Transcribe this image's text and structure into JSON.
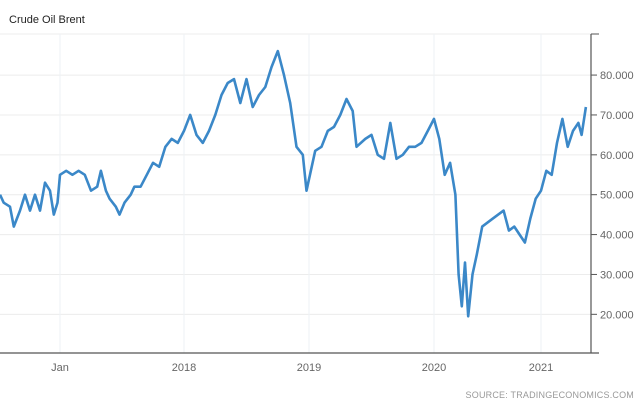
{
  "chart_data": {
    "type": "line",
    "title": "Crude Oil Brent",
    "source": "SOURCE: TRADINGECONOMICS.COM",
    "xlabel": "",
    "ylabel": "",
    "ylim": [
      10.3,
      90.3
    ],
    "xlim": [
      2016.52,
      2021.44
    ],
    "grid": true,
    "y_ticks": [
      20,
      30,
      40,
      50,
      60,
      70,
      80
    ],
    "y_tick_labels": [
      "20.000",
      "30.000",
      "40.000",
      "50.000",
      "60.000",
      "70.000",
      "80.000"
    ],
    "x_ticks": [
      2017,
      2018,
      2019,
      2020,
      2021
    ],
    "x_tick_labels": [
      "Jan",
      "2018",
      "2019",
      "2020",
      "2021"
    ],
    "line_color": "#3b88c8",
    "series": [
      {
        "name": "Crude Oil Brent",
        "x": [
          2016.52,
          2016.55,
          2016.6,
          2016.63,
          2016.68,
          2016.72,
          2016.76,
          2016.8,
          2016.84,
          2016.88,
          2016.92,
          2016.95,
          2016.98,
          2017.0,
          2017.05,
          2017.1,
          2017.15,
          2017.2,
          2017.25,
          2017.3,
          2017.33,
          2017.37,
          2017.4,
          2017.45,
          2017.48,
          2017.52,
          2017.57,
          2017.6,
          2017.65,
          2017.7,
          2017.75,
          2017.8,
          2017.85,
          2017.9,
          2017.95,
          2018.0,
          2018.05,
          2018.1,
          2018.15,
          2018.2,
          2018.25,
          2018.3,
          2018.35,
          2018.4,
          2018.45,
          2018.5,
          2018.55,
          2018.6,
          2018.65,
          2018.7,
          2018.75,
          2018.8,
          2018.85,
          2018.9,
          2018.95,
          2018.98,
          2019.05,
          2019.1,
          2019.15,
          2019.2,
          2019.25,
          2019.3,
          2019.35,
          2019.38,
          2019.45,
          2019.5,
          2019.55,
          2019.6,
          2019.65,
          2019.7,
          2019.75,
          2019.8,
          2019.85,
          2019.9,
          2019.95,
          2020.0,
          2020.05,
          2020.1,
          2020.15,
          2020.2,
          2020.23,
          2020.26,
          2020.29,
          2020.32,
          2020.36,
          2020.4,
          2020.45,
          2020.5,
          2020.55,
          2020.6,
          2020.65,
          2020.7,
          2020.75,
          2020.8,
          2020.85,
          2020.9,
          2020.95,
          2021.0,
          2021.05,
          2021.1,
          2021.15,
          2021.2,
          2021.25,
          2021.3,
          2021.35,
          2021.38,
          2021.42
        ],
        "values": [
          50,
          48,
          47,
          42,
          46,
          50,
          46,
          50,
          46,
          53,
          51,
          45,
          48,
          55,
          56,
          55,
          56,
          55,
          51,
          52,
          56,
          51,
          49,
          47,
          45,
          48,
          50,
          52,
          52,
          55,
          58,
          57,
          62,
          64,
          63,
          66,
          70,
          65,
          63,
          66,
          70,
          75,
          78,
          79,
          73,
          79,
          72,
          75,
          77,
          82,
          86,
          80,
          73,
          62,
          60,
          51,
          61,
          62,
          66,
          67,
          70,
          74,
          71,
          62,
          64,
          65,
          60,
          59,
          68,
          59,
          60,
          62,
          62,
          63,
          66,
          69,
          64,
          55,
          58,
          50,
          30,
          22,
          33,
          19.5,
          30,
          35,
          42,
          43,
          44,
          45,
          46,
          41,
          42,
          40,
          38,
          44,
          49,
          51,
          56,
          55,
          63,
          69,
          62,
          66,
          68,
          65,
          72
        ]
      }
    ]
  }
}
